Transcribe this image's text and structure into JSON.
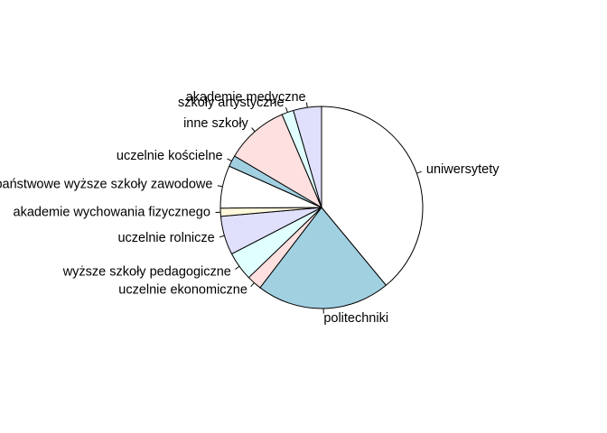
{
  "chart_data": {
    "type": "pie",
    "title": "",
    "direction": "clockwise",
    "start_angle_deg": 90,
    "slices": [
      {
        "label": "uniwersytety",
        "value": 39.0,
        "color": "#ffffff"
      },
      {
        "label": "politechniki",
        "value": 21.4,
        "color": "#a1d0e1"
      },
      {
        "label": "uczelnie ekonomiczne",
        "value": 2.4,
        "color": "#ffe0e0"
      },
      {
        "label": "wyższe szkoły pedagogiczne",
        "value": 4.6,
        "color": "#e0ffff"
      },
      {
        "label": "uczelnie rolnicze",
        "value": 6.2,
        "color": "#e0e0fc"
      },
      {
        "label": "akademie wychowania fizycznego",
        "value": 1.3,
        "color": "#fff8dc"
      },
      {
        "label": "państwowe wyższe szkoły zawodowe",
        "value": 6.8,
        "color": "#ffffff"
      },
      {
        "label": "uczelnie kościelne",
        "value": 1.8,
        "color": "#a1d0e1"
      },
      {
        "label": "inne szkoły",
        "value": 10.1,
        "color": "#ffe0e0"
      },
      {
        "label": "szkoły artystyczne",
        "value": 1.9,
        "color": "#e0ffff"
      },
      {
        "label": "akademie medyczne",
        "value": 4.5,
        "color": "#e0e0fc"
      }
    ]
  }
}
